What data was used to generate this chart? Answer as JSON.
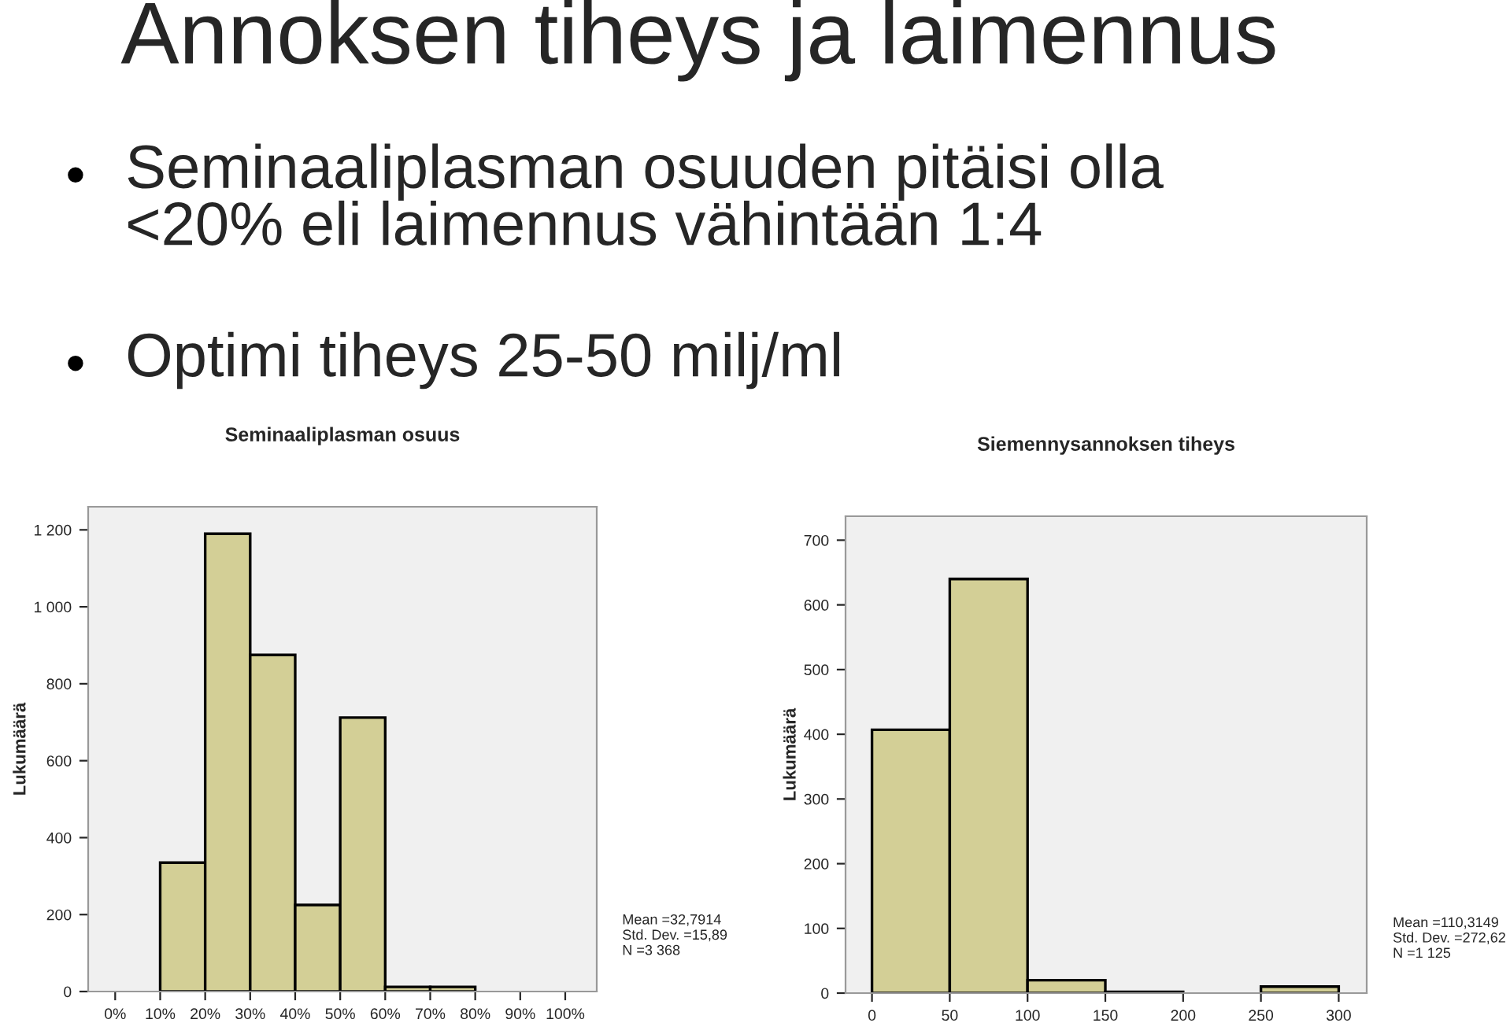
{
  "chart_data": [
    {
      "type": "other",
      "title": "Annoksen tiheys ja laimennus",
      "annotations": [
        "Seminaaliplasman osuuden pitäisi olla\n<20% eli laimennus vähintään 1:4",
        "Optimi tiheys 25-50 milj/ml"
      ]
    },
    {
      "type": "histogram",
      "title": "Seminaaliplasman osuus",
      "ylabel": "Lukumäärä",
      "bins": [
        0,
        10,
        20,
        30,
        40,
        50,
        60,
        70,
        80,
        90,
        100
      ],
      "values": [
        0,
        335,
        1190,
        875,
        225,
        712,
        12,
        12,
        0,
        0
      ],
      "color": "#d3cf96",
      "xlim": [
        -6,
        107
      ],
      "ylim": [
        0,
        1260
      ],
      "xticks": [
        {
          "value": 0,
          "label": "0%"
        },
        {
          "value": 10,
          "label": "10%"
        },
        {
          "value": 20,
          "label": "20%"
        },
        {
          "value": 30,
          "label": "30%"
        },
        {
          "value": 40,
          "label": "40%"
        },
        {
          "value": 50,
          "label": "50%"
        },
        {
          "value": 60,
          "label": "60%"
        },
        {
          "value": 70,
          "label": "70%"
        },
        {
          "value": 80,
          "label": "80%"
        },
        {
          "value": 90,
          "label": "90%"
        },
        {
          "value": 100,
          "label": "100%"
        }
      ],
      "yticks": [
        0,
        200,
        400,
        600,
        800,
        {
          "value": 1000,
          "label": "1 000"
        },
        {
          "value": 1200,
          "label": "1 200"
        }
      ],
      "grid": false,
      "annotations": [
        "Mean =32,7914\nStd. Dev. =15,89\nN =3 368"
      ]
    },
    {
      "type": "histogram",
      "title": "Siemennysannoksen tiheys",
      "ylabel": "Lukumäärä",
      "bins": [
        0,
        50,
        100,
        150,
        200,
        250,
        300
      ],
      "values": [
        407,
        640,
        20,
        2,
        0,
        10
      ],
      "color": "#d3cf96",
      "xlim": [
        -17,
        318
      ],
      "ylim": [
        0,
        737
      ],
      "xticks": [
        0,
        50,
        100,
        150,
        200,
        250,
        300
      ],
      "yticks": [
        0,
        100,
        200,
        300,
        400,
        500,
        600,
        700
      ],
      "grid": false,
      "annotations": [
        "Mean =110,3149\nStd. Dev. =272,62\nN =1 125"
      ]
    }
  ]
}
